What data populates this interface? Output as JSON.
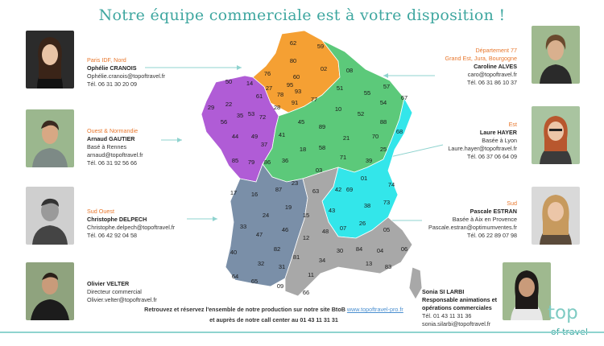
{
  "title": "Notre équipe commerciale est à votre disposition !",
  "contacts": [
    {
      "region": "Paris IDF, Nord",
      "name": "Ophélie CRANOIS",
      "email": "Ophélie.cranois@topoftravel.fr",
      "phone": "Tél. 06 31 30 20 09"
    },
    {
      "region": "Ouest & Normandie",
      "name": "Arnaud GAUTIER",
      "location": "Basé à Rennes",
      "email": "arnaud@topoftravel.fr",
      "phone": "Tél. 06 31 92 56 66"
    },
    {
      "region": "Sud Ouest",
      "name": "Christophe DELPECH",
      "email": "Christophe.delpech@topoftravel.fr",
      "phone": "Tél. 06 42 92 04 58"
    },
    {
      "name": "Olivier VELTER",
      "role": "Directeur commercial",
      "email": "Olivier.velter@topoftravel.fr"
    },
    {
      "region1": "Département 77",
      "region2": "Grand Est, Jura, Bourgogne",
      "name": "Caroline ALVES",
      "email": "caro@topoftravel.fr",
      "phone": "Tél. 06 31 86 10 37"
    },
    {
      "region": "Est",
      "name": "Laure HAYER",
      "location": "Basée à Lyon",
      "email": "Laure.hayer@topoftravel.fr",
      "phone": "Tél. 06 37 06 64 09"
    },
    {
      "region": "Sud",
      "name": "Pascale ESTRAN",
      "location": "Basée à Aix en Provence",
      "email": "Pascale.estran@optimumventes.fr",
      "phone": "Tél. 06 22 89 07 98"
    },
    {
      "name": "Sonia SI LARBI",
      "role1": "Responsable animations et",
      "role2": "opérations commerciales",
      "phone": "Tél. 01 43 11 31 36",
      "email": "sonia.silarbi@topoftravel.fr"
    }
  ],
  "footer": {
    "line1_text": "Retrouvez et réservez l'ensemble de notre production sur notre site BtoB ",
    "line1_link": "www.topoftravel-pro.fr",
    "line2": "et auprès de notre call center au 01 43 11 31 31"
  },
  "logo": {
    "line1": "top",
    "line2": "of travel"
  },
  "map_colors": {
    "orange": "#f5a033",
    "purple": "#b05cd6",
    "green": "#5cc97a",
    "cyan": "#33e6ea",
    "blue": "#7a8fa8",
    "gray": "#a8a8a8"
  },
  "departments": [
    {
      "label": "62"
    },
    {
      "label": "59"
    },
    {
      "label": "80"
    },
    {
      "label": "76"
    },
    {
      "label": "60"
    },
    {
      "label": "02"
    },
    {
      "label": "27"
    },
    {
      "label": "95"
    },
    {
      "label": "78"
    },
    {
      "label": "93"
    },
    {
      "label": "91"
    },
    {
      "label": "28"
    },
    {
      "label": "50"
    },
    {
      "label": "14"
    },
    {
      "label": "61"
    },
    {
      "label": "29"
    },
    {
      "label": "22"
    },
    {
      "label": "56"
    },
    {
      "label": "35"
    },
    {
      "label": "53"
    },
    {
      "label": "72"
    },
    {
      "label": "44"
    },
    {
      "label": "49"
    },
    {
      "label": "85"
    },
    {
      "label": "79"
    },
    {
      "label": "86"
    },
    {
      "label": "08"
    },
    {
      "label": "51"
    },
    {
      "label": "55"
    },
    {
      "label": "57"
    },
    {
      "label": "67"
    },
    {
      "label": "77"
    },
    {
      "label": "10"
    },
    {
      "label": "52"
    },
    {
      "label": "54"
    },
    {
      "label": "88"
    },
    {
      "label": "68"
    },
    {
      "label": "45"
    },
    {
      "label": "89"
    },
    {
      "label": "21"
    },
    {
      "label": "70"
    },
    {
      "label": "25"
    },
    {
      "label": "41"
    },
    {
      "label": "37"
    },
    {
      "label": "18"
    },
    {
      "label": "58"
    },
    {
      "label": "71"
    },
    {
      "label": "39"
    },
    {
      "label": "36"
    },
    {
      "label": "03"
    },
    {
      "label": "01"
    },
    {
      "label": "74"
    },
    {
      "label": "23"
    },
    {
      "label": "63"
    },
    {
      "label": "42"
    },
    {
      "label": "69"
    },
    {
      "label": "73"
    },
    {
      "label": "38"
    },
    {
      "label": "43"
    },
    {
      "label": "07"
    },
    {
      "label": "26"
    },
    {
      "label": "05"
    },
    {
      "label": "48"
    },
    {
      "label": "04"
    },
    {
      "label": "06"
    },
    {
      "label": "30"
    },
    {
      "label": "84"
    },
    {
      "label": "13"
    },
    {
      "label": "83"
    },
    {
      "label": "34"
    },
    {
      "label": "11"
    },
    {
      "label": "66"
    },
    {
      "label": "17"
    },
    {
      "label": "16"
    },
    {
      "label": "87"
    },
    {
      "label": "19"
    },
    {
      "label": "15"
    },
    {
      "label": "24"
    },
    {
      "label": "46"
    },
    {
      "label": "12"
    },
    {
      "label": "47"
    },
    {
      "label": "82"
    },
    {
      "label": "81"
    },
    {
      "label": "33"
    },
    {
      "label": "40"
    },
    {
      "label": "32"
    },
    {
      "label": "31"
    },
    {
      "label": "64"
    },
    {
      "label": "65"
    },
    {
      "label": "09"
    }
  ]
}
